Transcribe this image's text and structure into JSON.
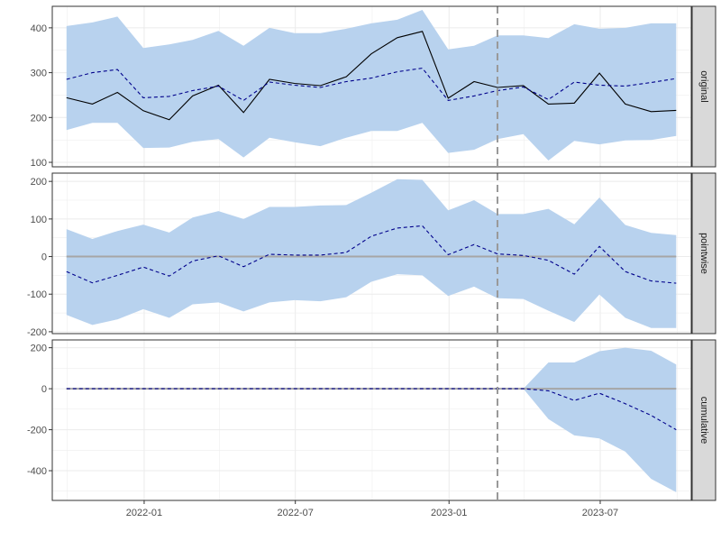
{
  "chart_data": {
    "type": "line",
    "title": "",
    "xlabel": "",
    "ylabel": "",
    "intervention_date": "2023-02-28",
    "x_tick_labels": [
      "2022-01",
      "2022-07",
      "2023-01",
      "2023-07"
    ],
    "x": [
      "2021-09-30",
      "2021-10-31",
      "2021-11-30",
      "2021-12-31",
      "2022-01-31",
      "2022-02-28",
      "2022-03-31",
      "2022-04-30",
      "2022-05-31",
      "2022-06-30",
      "2022-07-31",
      "2022-08-31",
      "2022-09-30",
      "2022-10-31",
      "2022-11-30",
      "2022-12-31",
      "2023-01-31",
      "2023-02-28",
      "2023-03-31",
      "2023-04-30",
      "2023-05-31",
      "2023-06-30",
      "2023-07-31",
      "2023-08-31",
      "2023-09-30"
    ],
    "colors": {
      "band": "#b8d2ee",
      "prediction": "#00008b",
      "observed": "#000000",
      "zero_line": "#a6a6a6",
      "vline": "#999999",
      "strip_bg": "#d9d9d9",
      "grid": "#ebebeb"
    },
    "panels": [
      {
        "strip_label": "original",
        "ylim": [
          90,
          448
        ],
        "y_ticks": [
          100,
          200,
          300,
          400
        ],
        "observed": [
          244,
          230,
          256,
          215,
          195,
          248,
          272,
          211,
          285,
          276,
          271,
          291,
          342,
          378,
          392,
          243,
          280,
          267,
          271,
          230,
          232,
          299,
          230,
          213,
          216
        ],
        "prediction": [
          285,
          300,
          307,
          244,
          247,
          260,
          270,
          238,
          279,
          272,
          267,
          280,
          288,
          302,
          310,
          238,
          248,
          260,
          268,
          240,
          279,
          272,
          270,
          278,
          287
        ],
        "upper": [
          404,
          412,
          425,
          355,
          363,
          373,
          393,
          360,
          400,
          388,
          388,
          398,
          410,
          418,
          440,
          352,
          360,
          383,
          383,
          377,
          408,
          398,
          400,
          410,
          410
        ],
        "lower": [
          172,
          188,
          188,
          132,
          133,
          146,
          152,
          111,
          155,
          145,
          136,
          155,
          170,
          170,
          188,
          121,
          128,
          152,
          163,
          104,
          148,
          140,
          149,
          150,
          159
        ]
      },
      {
        "strip_label": "pointwise",
        "ylim": [
          -205,
          222
        ],
        "y_ticks": [
          -200,
          -100,
          0,
          100,
          200
        ],
        "zero_line": 0,
        "prediction": [
          -40,
          -70,
          -50,
          -28,
          -52,
          -12,
          2,
          -27,
          6,
          4,
          4,
          11,
          54,
          76,
          82,
          5,
          32,
          7,
          3,
          -10,
          -47,
          27,
          -40,
          -65,
          -71
        ],
        "upper": [
          73,
          47,
          68,
          85,
          64,
          104,
          121,
          100,
          132,
          132,
          136,
          137,
          170,
          206,
          204,
          123,
          150,
          113,
          113,
          127,
          86,
          157,
          84,
          63,
          57
        ],
        "lower": [
          -155,
          -182,
          -167,
          -140,
          -163,
          -127,
          -122,
          -146,
          -122,
          -116,
          -119,
          -108,
          -67,
          -47,
          -50,
          -105,
          -80,
          -111,
          -113,
          -144,
          -174,
          -101,
          -163,
          -190,
          -190
        ]
      },
      {
        "strip_label": "cumulative",
        "ylim": [
          -545,
          238
        ],
        "y_ticks": [
          -400,
          -200,
          0,
          200
        ],
        "zero_line": 0,
        "prediction": [
          0,
          0,
          0,
          0,
          0,
          0,
          0,
          0,
          0,
          0,
          0,
          0,
          0,
          0,
          0,
          0,
          0,
          0,
          0,
          -10,
          -57,
          -22,
          -73,
          -130,
          -200
        ],
        "upper": [
          0,
          0,
          0,
          0,
          0,
          0,
          0,
          0,
          0,
          0,
          0,
          0,
          0,
          0,
          0,
          0,
          0,
          0,
          0,
          128,
          128,
          183,
          200,
          185,
          118
        ],
        "lower": [
          0,
          0,
          0,
          0,
          0,
          0,
          0,
          0,
          0,
          0,
          0,
          0,
          0,
          0,
          0,
          0,
          0,
          0,
          0,
          -148,
          -228,
          -243,
          -307,
          -440,
          -505
        ]
      }
    ],
    "grid": true,
    "legend": "none"
  }
}
